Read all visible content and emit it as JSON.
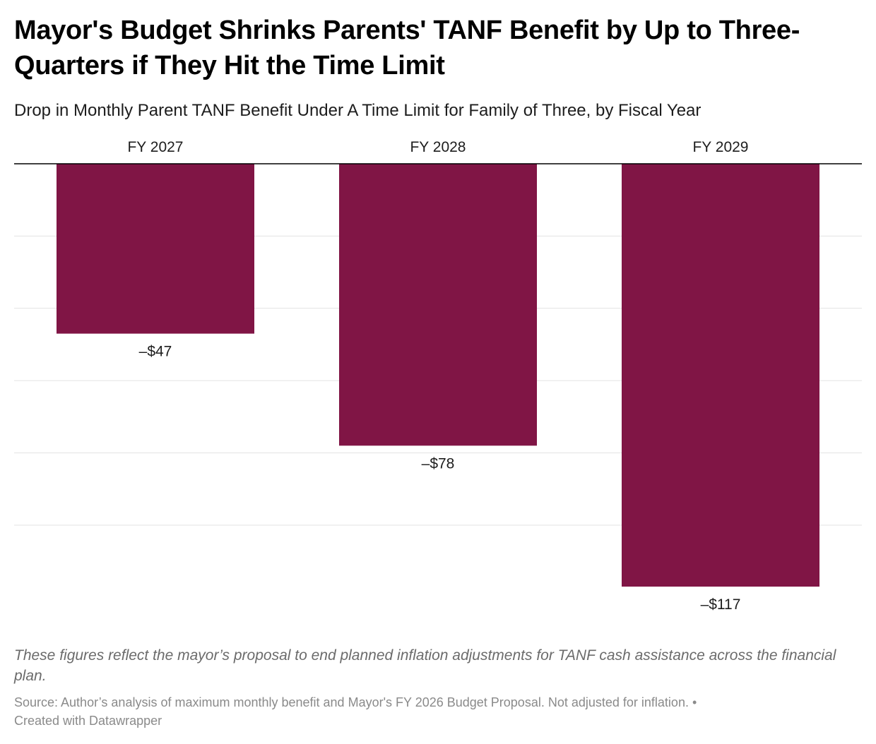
{
  "title": "Mayor's Budget Shrinks Parents' TANF Benefit by Up to Three-Quarters if They Hit the Time Limit",
  "subtitle": "Drop in Monthly Parent TANF Benefit Under A Time Limit for Family of Three, by Fiscal Year",
  "notes": "These figures reflect the mayor’s proposal to end planned inflation adjustments for TANF cash assistance across the financial plan.",
  "source": "Source: Author’s analysis of maximum monthly benefit and Mayor's FY 2026 Budget Proposal. Not adjusted for inflation.",
  "separator": "•",
  "credit": "Created with Datawrapper",
  "colors": {
    "bar": "#801545",
    "gridline": "#e3e3e3",
    "baseline": "#000000"
  },
  "chart_data": {
    "type": "bar",
    "orientation": "vertical",
    "categories": [
      "FY 2027",
      "FY 2028",
      "FY 2029"
    ],
    "values": [
      -47,
      -78,
      -117
    ],
    "value_labels": [
      "–$47",
      "–$78",
      "–$117"
    ],
    "ylim": [
      -117,
      0
    ],
    "gridlines": [
      0,
      -20,
      -40,
      -60,
      -80,
      -100
    ],
    "grid": true,
    "category_labels_position": "top",
    "xlabel": "",
    "ylabel": ""
  }
}
